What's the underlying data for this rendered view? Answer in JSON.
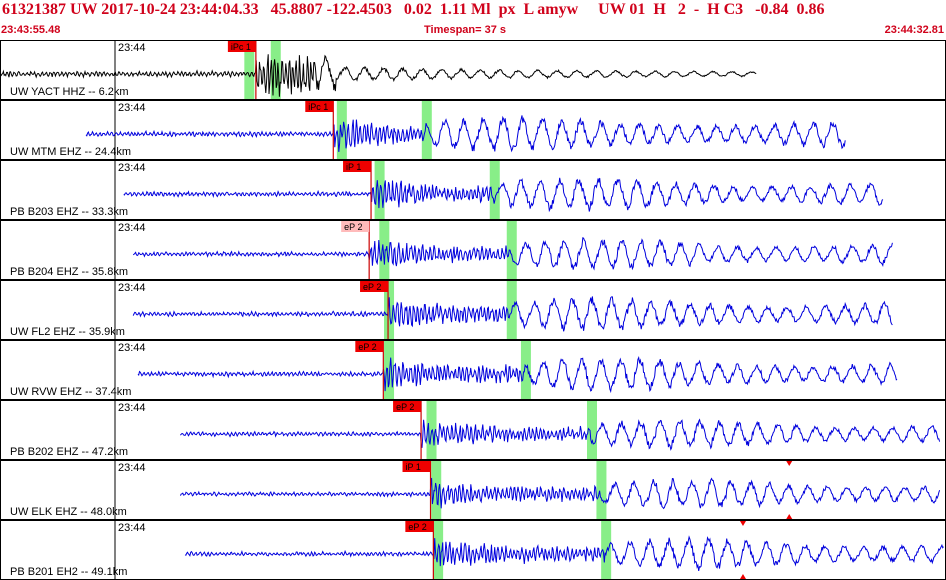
{
  "header": {
    "event_line": "61321387 UW 2017-10-24 23:44:04.33   45.8807 -122.4503   0.02  1.11 Ml  px  L amyw     UW 01  H   2  -  H C3   -0.84  0.86",
    "start_time": "23:43:55.48",
    "timespan": "Timespan=  37 s",
    "end_time": "23:44:32.81"
  },
  "colors": {
    "header_text": "#d0021b",
    "first_trace": "#000000",
    "trace": "#0000dd",
    "pick_flag": "#ee0000",
    "pick_flag_light": "#ffbbbb",
    "pick_line": "#cc0000",
    "window": "#88ee88",
    "marker": "#ee0000"
  },
  "traces": [
    {
      "station": "UW YACT HHZ -- 6.2km",
      "tick": "23:44",
      "pick": "iPc 1",
      "pick_style": "solid",
      "color": "black",
      "start": 0.0,
      "end": 0.8,
      "p": 0.27,
      "s": 0.335,
      "p_window": 0.262,
      "s_window": 0.29,
      "amp": 1.0,
      "markers": []
    },
    {
      "station": "UW MTM EHZ -- 24.4km",
      "tick": "23:44",
      "pick": "iPc 1",
      "pick_style": "solid",
      "color": "blue",
      "start": 0.09,
      "end": 0.895,
      "p": 0.352,
      "s": 0.45,
      "p_window": 0.36,
      "s_window": 0.45,
      "amp": 0.9,
      "markers": []
    },
    {
      "station": "PB B203 EHZ -- 33.3km",
      "tick": "23:44",
      "pick": "iP 1",
      "pick_style": "solid",
      "color": "blue",
      "start": 0.13,
      "end": 0.935,
      "p": 0.392,
      "s": 0.522,
      "p_window": 0.4,
      "s_window": 0.522,
      "amp": 0.85,
      "markers": []
    },
    {
      "station": "PB B204 EHZ -- 35.8km",
      "tick": "23:44",
      "pick": "eP 2",
      "pick_style": "light",
      "color": "blue",
      "start": 0.14,
      "end": 0.945,
      "p": 0.39,
      "s": 0.54,
      "p_window": 0.405,
      "s_window": 0.54,
      "amp": 0.8,
      "markers": []
    },
    {
      "station": "UW FL2 EHZ -- 35.9km",
      "tick": "23:44",
      "pick": "eP 2",
      "pick_style": "solid",
      "color": "blue",
      "start": 0.14,
      "end": 0.945,
      "p": 0.41,
      "s": 0.54,
      "p_window": 0.41,
      "s_window": 0.54,
      "amp": 0.85,
      "markers": []
    },
    {
      "station": "UW RVW EHZ -- 37.4km",
      "tick": "23:44",
      "pick": "eP 2",
      "pick_style": "solid",
      "color": "blue",
      "start": 0.145,
      "end": 0.95,
      "p": 0.405,
      "s": 0.555,
      "p_window": 0.41,
      "s_window": 0.555,
      "amp": 0.85,
      "markers": []
    },
    {
      "station": "PB B202 EHZ -- 47.2km",
      "tick": "23:44",
      "pick": "eP 2",
      "pick_style": "solid",
      "color": "blue",
      "start": 0.19,
      "end": 0.995,
      "p": 0.445,
      "s": 0.625,
      "p_window": 0.455,
      "s_window": 0.625,
      "amp": 0.75,
      "markers": []
    },
    {
      "station": "UW ELK EHZ -- 48.0km",
      "tick": "23:44",
      "pick": "iP 1",
      "pick_style": "solid",
      "color": "blue",
      "start": 0.19,
      "end": 0.995,
      "p": 0.455,
      "s": 0.635,
      "p_window": 0.46,
      "s_window": 0.635,
      "amp": 0.75,
      "markers": [
        {
          "pos": 0.835,
          "dir": "down"
        },
        {
          "pos": 0.835,
          "dir": "up"
        }
      ]
    },
    {
      "station": "PB B201 EH2 -- 49.1km",
      "tick": "23:44",
      "pick": "eP 2",
      "pick_style": "solid",
      "color": "blue",
      "start": 0.195,
      "end": 0.999,
      "p": 0.458,
      "s": 0.64,
      "p_window": 0.462,
      "s_window": 0.64,
      "amp": 0.8,
      "markers": [
        {
          "pos": 0.786,
          "dir": "down"
        },
        {
          "pos": 0.786,
          "dir": "up"
        }
      ]
    }
  ]
}
